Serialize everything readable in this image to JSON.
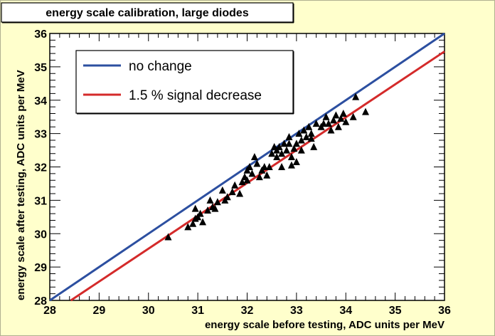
{
  "chart_data": {
    "type": "scatter",
    "title": "energy scale calibration, large diodes",
    "xlabel": "energy scale before testing, ADC units per MeV",
    "ylabel": "energy scale after testing, ADC units per MeV",
    "xlim": [
      28,
      36
    ],
    "ylim": [
      28,
      36
    ],
    "x_ticks": [
      "28",
      "29",
      "30",
      "31",
      "32",
      "33",
      "34",
      "35",
      "36"
    ],
    "y_ticks": [
      "28",
      "29",
      "30",
      "31",
      "32",
      "33",
      "34",
      "35",
      "36"
    ],
    "grid": false,
    "legend_position": "top-left",
    "lines": [
      {
        "name": "no change",
        "color": "#2c4fa0",
        "x": [
          28,
          36
        ],
        "y": [
          28,
          36
        ]
      },
      {
        "name": "1.5 % signal decrease",
        "color": "#d42a2a",
        "x": [
          28,
          36
        ],
        "y": [
          27.58,
          35.46
        ]
      }
    ],
    "series": [
      {
        "marker": "triangle",
        "color": "#000000",
        "points": [
          [
            30.4,
            29.9
          ],
          [
            30.8,
            30.2
          ],
          [
            30.9,
            30.3
          ],
          [
            30.95,
            30.45
          ],
          [
            31.0,
            30.5
          ],
          [
            30.95,
            30.75
          ],
          [
            31.05,
            30.6
          ],
          [
            31.2,
            30.7
          ],
          [
            31.3,
            30.8
          ],
          [
            31.25,
            31.0
          ],
          [
            31.4,
            30.95
          ],
          [
            31.5,
            31.3
          ],
          [
            31.55,
            31.0
          ],
          [
            31.6,
            31.1
          ],
          [
            31.7,
            31.25
          ],
          [
            31.75,
            31.45
          ],
          [
            31.9,
            31.55
          ],
          [
            31.95,
            31.7
          ],
          [
            32.0,
            31.9
          ],
          [
            32.0,
            31.6
          ],
          [
            32.1,
            31.8
          ],
          [
            32.05,
            32.0
          ],
          [
            32.2,
            32.1
          ],
          [
            32.25,
            31.7
          ],
          [
            32.3,
            31.9
          ],
          [
            32.35,
            32.0
          ],
          [
            32.4,
            31.75
          ],
          [
            32.45,
            32.0
          ],
          [
            32.5,
            32.4
          ],
          [
            32.6,
            32.5
          ],
          [
            32.65,
            32.6
          ],
          [
            32.7,
            32.4
          ],
          [
            32.75,
            32.7
          ],
          [
            32.8,
            32.5
          ],
          [
            32.85,
            32.9
          ],
          [
            32.9,
            32.3
          ],
          [
            32.95,
            32.55
          ],
          [
            33.0,
            32.7
          ],
          [
            33.0,
            32.15
          ],
          [
            33.05,
            33.0
          ],
          [
            33.1,
            32.8
          ],
          [
            33.15,
            33.1
          ],
          [
            33.2,
            32.9
          ],
          [
            33.25,
            33.2
          ],
          [
            33.3,
            33.0
          ],
          [
            33.35,
            32.6
          ],
          [
            33.4,
            33.3
          ],
          [
            33.5,
            33.2
          ],
          [
            33.6,
            33.5
          ],
          [
            33.65,
            33.3
          ],
          [
            33.7,
            33.1
          ],
          [
            33.75,
            33.4
          ],
          [
            33.8,
            33.55
          ],
          [
            33.85,
            33.2
          ],
          [
            33.9,
            33.45
          ],
          [
            33.95,
            33.6
          ],
          [
            34.0,
            33.35
          ],
          [
            34.2,
            34.1
          ],
          [
            34.4,
            33.65
          ],
          [
            34.15,
            33.5
          ],
          [
            32.15,
            32.3
          ],
          [
            32.55,
            32.6
          ],
          [
            32.6,
            32.3
          ],
          [
            32.7,
            32.0
          ],
          [
            32.85,
            32.7
          ],
          [
            33.1,
            32.5
          ],
          [
            33.3,
            32.85
          ],
          [
            33.55,
            33.3
          ],
          [
            31.85,
            31.2
          ],
          [
            31.35,
            30.75
          ],
          [
            31.1,
            30.35
          ],
          [
            32.9,
            32.05
          ]
        ]
      }
    ]
  }
}
